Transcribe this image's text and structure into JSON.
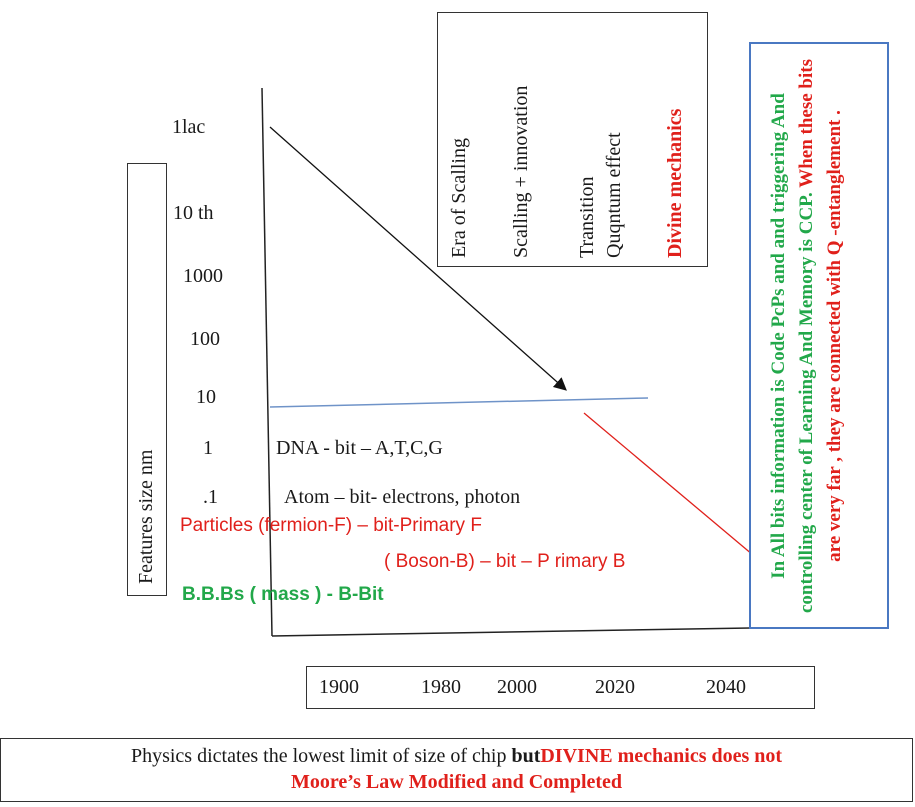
{
  "era_labels": [
    "Era of Scalling",
    "Scalling + innovation",
    "Transition",
    "Quqntum effect",
    "Divine mechanics"
  ],
  "y_axis": {
    "title": "Features  size   nm",
    "ticks": [
      "1lac",
      "10 th",
      "1000",
      "100",
      "10",
      "1",
      ".1"
    ]
  },
  "examples": {
    "dna": "DNA  - bit – A,T,C,G",
    "atom": "Atom – bit- electrons, photon",
    "particles": "Particles (fermion-F) – bit-Primary F",
    "boson": "( Boson-B) – bit – P rimary B",
    "bbbs": "B.B.Bs  ( mass )  - B-Bit"
  },
  "note": {
    "part1": "In All bits information is Code  PcPs and and triggering And controlling center of Learning And Memory  is CCP.",
    "part2": "When these bits are very far , they are connected with Q -entanglement ."
  },
  "x_axis": {
    "years": [
      "1900",
      "1980",
      "2000",
      "2020",
      "2040"
    ]
  },
  "footer": {
    "line1_plain": "Physics dictates the lowest limit of size of chip ",
    "line1_but": "but",
    "line1_red": "DIVINE mechanics does not",
    "line2": "Moore’s Law Modified and Completed"
  },
  "colors": {
    "red": "#e0201b",
    "green": "#22a84a",
    "blue_line": "#6f93c8",
    "box_blue": "#4a78c2"
  }
}
